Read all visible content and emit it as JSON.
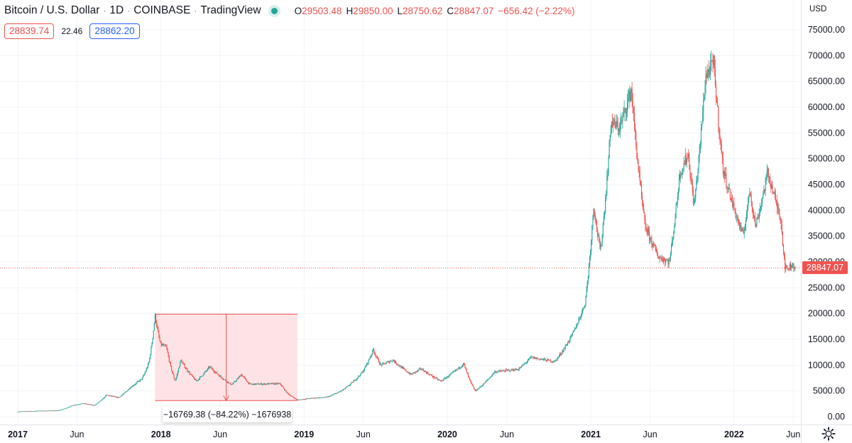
{
  "header": {
    "symbol": "Bitcoin / U.S. Dollar",
    "interval": "1D",
    "exchange": "COINBASE",
    "source": "TradingView",
    "separator": "·"
  },
  "ohlc": {
    "open_label": "O",
    "open": "29503.48",
    "high_label": "H",
    "high": "29850.00",
    "low_label": "L",
    "low": "28750.62",
    "close_label": "C",
    "close": "28847.07",
    "change": "−656.42 (−2.22%)"
  },
  "quote": {
    "bid": "28839.74",
    "spread": "22.46",
    "ask": "28862.20"
  },
  "price_scale": {
    "currency": "USD",
    "last_price": "28847.07"
  },
  "measure": {
    "label": "−16769.38 (−84.22%) −1676938"
  },
  "colors": {
    "up": "#26a69a",
    "down": "#ef5350",
    "grid": "#f0f3fa",
    "measure_fill": "#fde0e2",
    "measure_stroke": "#ef5350",
    "text": "#131722"
  },
  "chart_data": {
    "type": "candlestick",
    "title": "Bitcoin / U.S. Dollar",
    "ylim": [
      0,
      77500
    ],
    "y_ticks": [
      0,
      5000,
      10000,
      15000,
      20000,
      25000,
      30000,
      35000,
      40000,
      45000,
      50000,
      55000,
      60000,
      65000,
      70000,
      75000
    ],
    "y_tick_labels": [
      "0.00",
      "5000.00",
      "10000.00",
      "15000.00",
      "20000.00",
      "25000.00",
      "30000.00",
      "35000.00",
      "40000.00",
      "45000.00",
      "50000.00",
      "55000.00",
      "60000.00",
      "65000.00",
      "70000.00",
      "75000.00"
    ],
    "x_range": [
      "2017-01-01",
      "2022-06-06"
    ],
    "x_ticks": [
      {
        "date": "2017-01-01",
        "label": "2017",
        "bold": true
      },
      {
        "date": "2017-06-01",
        "label": "Jun",
        "bold": false
      },
      {
        "date": "2018-01-01",
        "label": "2018",
        "bold": true
      },
      {
        "date": "2018-06-01",
        "label": "Jun",
        "bold": false
      },
      {
        "date": "2019-01-01",
        "label": "2019",
        "bold": true
      },
      {
        "date": "2019-06-01",
        "label": "Jun",
        "bold": false
      },
      {
        "date": "2020-01-01",
        "label": "2020",
        "bold": true
      },
      {
        "date": "2020-06-01",
        "label": "Jun",
        "bold": false
      },
      {
        "date": "2021-01-01",
        "label": "2021",
        "bold": true
      },
      {
        "date": "2021-06-01",
        "label": "Jun",
        "bold": false
      },
      {
        "date": "2022-01-01",
        "label": "2022",
        "bold": true
      },
      {
        "date": "2022-06-01",
        "label": "Jun",
        "bold": false
      }
    ],
    "last_price": 28847.07,
    "price_path": [
      [
        "2017-01-01",
        1000
      ],
      [
        "2017-03-01",
        1150
      ],
      [
        "2017-04-15",
        1200
      ],
      [
        "2017-05-20",
        2200
      ],
      [
        "2017-06-15",
        2600
      ],
      [
        "2017-07-15",
        2200
      ],
      [
        "2017-08-15",
        4200
      ],
      [
        "2017-09-15",
        3700
      ],
      [
        "2017-10-15",
        5700
      ],
      [
        "2017-11-15",
        7500
      ],
      [
        "2017-12-01",
        10500
      ],
      [
        "2017-12-17",
        19600
      ],
      [
        "2017-12-31",
        14000
      ],
      [
        "2018-01-15",
        13500
      ],
      [
        "2018-02-06",
        6900
      ],
      [
        "2018-02-20",
        11000
      ],
      [
        "2018-04-01",
        6900
      ],
      [
        "2018-05-05",
        9700
      ],
      [
        "2018-06-30",
        6200
      ],
      [
        "2018-07-25",
        8200
      ],
      [
        "2018-08-15",
        6300
      ],
      [
        "2018-11-01",
        6400
      ],
      [
        "2018-11-20",
        4500
      ],
      [
        "2018-12-15",
        3250
      ],
      [
        "2019-01-20",
        3600
      ],
      [
        "2019-03-01",
        3800
      ],
      [
        "2019-04-10",
        5200
      ],
      [
        "2019-05-30",
        8700
      ],
      [
        "2019-06-26",
        13000
      ],
      [
        "2019-07-15",
        10000
      ],
      [
        "2019-08-15",
        11000
      ],
      [
        "2019-09-30",
        8200
      ],
      [
        "2019-10-26",
        9300
      ],
      [
        "2019-12-15",
        6900
      ],
      [
        "2020-02-12",
        10300
      ],
      [
        "2020-03-12",
        5000
      ],
      [
        "2020-04-30",
        8700
      ],
      [
        "2020-06-30",
        9200
      ],
      [
        "2020-08-01",
        11500
      ],
      [
        "2020-10-01",
        10700
      ],
      [
        "2020-11-15",
        16000
      ],
      [
        "2020-12-17",
        22000
      ],
      [
        "2021-01-08",
        41000
      ],
      [
        "2021-01-25",
        32000
      ],
      [
        "2021-02-21",
        57000
      ],
      [
        "2021-03-15",
        56000
      ],
      [
        "2021-04-14",
        63500
      ],
      [
        "2021-05-19",
        37000
      ],
      [
        "2021-06-22",
        31000
      ],
      [
        "2021-07-20",
        30000
      ],
      [
        "2021-08-15",
        47000
      ],
      [
        "2021-09-06",
        51000
      ],
      [
        "2021-09-21",
        41000
      ],
      [
        "2021-10-20",
        66000
      ],
      [
        "2021-11-10",
        68500
      ],
      [
        "2021-12-04",
        48000
      ],
      [
        "2022-01-24",
        35000
      ],
      [
        "2022-02-10",
        44000
      ],
      [
        "2022-02-25",
        37000
      ],
      [
        "2022-03-28",
        47500
      ],
      [
        "2022-04-30",
        38500
      ],
      [
        "2022-05-12",
        28500
      ],
      [
        "2022-05-31",
        29500
      ],
      [
        "2022-06-06",
        28847
      ]
    ],
    "measure_tool": {
      "x_start": "2017-12-17",
      "x_end": "2018-12-15",
      "y_start": 19891,
      "y_end": 3122,
      "change": -16769.38,
      "change_pct": -84.22
    }
  }
}
